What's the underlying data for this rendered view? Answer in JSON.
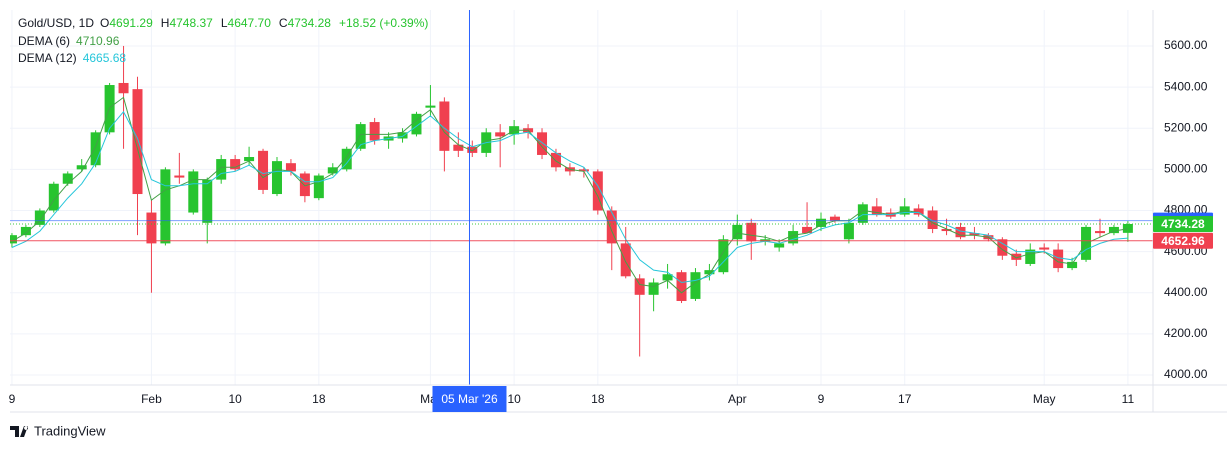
{
  "chart_data": {
    "type": "candlestick",
    "header": {
      "symbol": "Gold/USD, 1D",
      "fields": [
        {
          "key": "O",
          "value": "4691.29"
        },
        {
          "key": "H",
          "value": "4748.37"
        },
        {
          "key": "L",
          "value": "4647.70"
        },
        {
          "key": "C",
          "value": "4734.28"
        }
      ],
      "change": "+18.52 (+0.39%)"
    },
    "up_color": "#27c42f",
    "down_color": "#f0404f",
    "ohlc": {
      "open": [
        4640,
        4680,
        4730,
        4800,
        4930,
        5000,
        5020,
        5180,
        5420,
        5390,
        4790,
        4640,
        4970,
        4790,
        4740,
        4950,
        5050,
        5040,
        5090,
        4880,
        5030,
        4980,
        4860,
        4980,
        5000,
        5100,
        5230,
        5140,
        5150,
        5170,
        5300,
        5330,
        5120,
        5110,
        5080,
        5180,
        5170,
        5200,
        5180,
        5080,
        5010,
        5000,
        4990,
        4800,
        4640,
        4470,
        4390,
        4460,
        4500,
        4370,
        4490,
        4500,
        4660,
        4740,
        4650,
        4620,
        4640,
        4720,
        4720,
        4770,
        4660,
        4740,
        4820,
        4790,
        4780,
        4810,
        4800,
        4710,
        4720,
        4690,
        4680,
        4660,
        4590,
        4540,
        4620,
        4610,
        4520,
        4560,
        4700,
        4690,
        4691.29
      ],
      "high": [
        4690,
        4730,
        4810,
        4940,
        4990,
        5050,
        5190,
        5420,
        5600,
        5450,
        4850,
        5010,
        5080,
        5000,
        4960,
        5070,
        5070,
        5110,
        5100,
        5060,
        5050,
        4990,
        4980,
        5030,
        5110,
        5230,
        5250,
        5180,
        5200,
        5280,
        5410,
        5350,
        5180,
        5140,
        5200,
        5220,
        5240,
        5220,
        5200,
        5100,
        5030,
        5010,
        5000,
        4820,
        4720,
        4490,
        4470,
        4540,
        4510,
        4520,
        4540,
        4680,
        4780,
        4760,
        4680,
        4660,
        4730,
        4840,
        4790,
        4780,
        4760,
        4840,
        4860,
        4810,
        4860,
        4830,
        4820,
        4760,
        4740,
        4720,
        4690,
        4670,
        4610,
        4640,
        4640,
        4640,
        4570,
        4730,
        4760,
        4730,
        4748.37
      ],
      "low": [
        4620,
        4670,
        4720,
        4790,
        4920,
        4990,
        5010,
        5170,
        5100,
        4680,
        4400,
        4630,
        4930,
        4780,
        4640,
        4930,
        4990,
        5020,
        4880,
        4870,
        4970,
        4840,
        4850,
        4970,
        4990,
        5090,
        5120,
        5100,
        5130,
        5160,
        5260,
        4990,
        5060,
        5060,
        5060,
        5010,
        5120,
        5150,
        5050,
        4990,
        4970,
        4960,
        4780,
        4510,
        4470,
        4090,
        4310,
        4420,
        4350,
        4360,
        4460,
        4490,
        4630,
        4560,
        4630,
        4600,
        4630,
        4690,
        4700,
        4740,
        4640,
        4730,
        4770,
        4760,
        4770,
        4770,
        4690,
        4680,
        4660,
        4660,
        4650,
        4560,
        4530,
        4530,
        4590,
        4500,
        4510,
        4550,
        4670,
        4680,
        4647.7
      ],
      "close": [
        4680,
        4720,
        4800,
        4930,
        4980,
        5020,
        5180,
        5410,
        5370,
        4880,
        4640,
        5000,
        4960,
        4990,
        4950,
        5050,
        5000,
        5060,
        4900,
        5040,
        4990,
        4870,
        4970,
        5010,
        5100,
        5220,
        5140,
        5160,
        5180,
        5270,
        5310,
        5090,
        5090,
        5080,
        5180,
        5160,
        5210,
        5180,
        5070,
        5010,
        4990,
        4990,
        4800,
        4640,
        4480,
        4390,
        4450,
        4490,
        4360,
        4500,
        4510,
        4660,
        4730,
        4650,
        4660,
        4640,
        4700,
        4690,
        4760,
        4750,
        4740,
        4830,
        4780,
        4770,
        4820,
        4780,
        4710,
        4700,
        4670,
        4680,
        4660,
        4580,
        4560,
        4610,
        4610,
        4520,
        4550,
        4720,
        4690,
        4720,
        4734.28
      ]
    },
    "overlays": [
      {
        "name": "DEMA (6)",
        "color": "#43a047",
        "value_label": "4710.96",
        "values": [
          4650,
          4690,
          4750,
          4850,
          4930,
          4990,
          5110,
          5300,
          5350,
          5100,
          4850,
          4900,
          4920,
          4950,
          4950,
          5010,
          5010,
          5040,
          4960,
          5000,
          4990,
          4920,
          4940,
          4980,
          5060,
          5170,
          5170,
          5170,
          5180,
          5240,
          5290,
          5180,
          5120,
          5090,
          5140,
          5150,
          5190,
          5190,
          5110,
          5040,
          5000,
          4990,
          4870,
          4700,
          4550,
          4440,
          4430,
          4460,
          4400,
          4450,
          4490,
          4600,
          4690,
          4680,
          4670,
          4650,
          4680,
          4690,
          4730,
          4750,
          4750,
          4800,
          4790,
          4780,
          4800,
          4790,
          4740,
          4710,
          4680,
          4680,
          4670,
          4610,
          4570,
          4590,
          4600,
          4550,
          4540,
          4640,
          4670,
          4700,
          4710.96
        ]
      },
      {
        "name": "DEMA (12)",
        "color": "#26c6da",
        "value_label": "4665.68",
        "values": [
          4620,
          4650,
          4700,
          4780,
          4860,
          4930,
          5030,
          5200,
          5280,
          5150,
          4950,
          4920,
          4920,
          4930,
          4930,
          4980,
          4990,
          5020,
          4980,
          4990,
          4990,
          4940,
          4940,
          4960,
          5030,
          5120,
          5140,
          5150,
          5160,
          5210,
          5260,
          5200,
          5150,
          5110,
          5130,
          5140,
          5170,
          5180,
          5130,
          5080,
          5040,
          5010,
          4920,
          4790,
          4660,
          4560,
          4510,
          4500,
          4450,
          4460,
          4480,
          4550,
          4620,
          4640,
          4650,
          4640,
          4660,
          4680,
          4710,
          4730,
          4740,
          4780,
          4780,
          4780,
          4790,
          4790,
          4750,
          4730,
          4700,
          4690,
          4680,
          4640,
          4600,
          4600,
          4600,
          4570,
          4560,
          4610,
          4640,
          4660,
          4665.68
        ]
      }
    ],
    "price_lines": [
      {
        "value": 4750.78,
        "color": "#2962ff"
      },
      {
        "value": 4734.28,
        "color": "#27c42f"
      },
      {
        "value": 4652.96,
        "color": "#f0404f"
      }
    ],
    "xlim": [
      -0.14,
      81.8
    ],
    "ylim": [
      3951.5,
      5774.8
    ],
    "yticks": [
      {
        "value": 4000,
        "label": "4000.00"
      },
      {
        "value": 4200,
        "label": "4200.00"
      },
      {
        "value": 4400,
        "label": "4400.00"
      },
      {
        "value": 4600,
        "label": "4600.00"
      },
      {
        "value": 4800,
        "label": "4800.00"
      },
      {
        "value": 5000,
        "label": "5000.00"
      },
      {
        "value": 5200,
        "label": "5200.00"
      },
      {
        "value": 5400,
        "label": "5400.00"
      },
      {
        "value": 5600,
        "label": "5600.00"
      }
    ],
    "xticks": [
      {
        "value": 0,
        "label": "9"
      },
      {
        "value": 10,
        "label": "Feb"
      },
      {
        "value": 16,
        "label": "10"
      },
      {
        "value": 22,
        "label": "18"
      },
      {
        "value": 30,
        "label": "Mar"
      },
      {
        "value": 36,
        "label": "10"
      },
      {
        "value": 42,
        "label": "18"
      },
      {
        "value": 52,
        "label": "Apr"
      },
      {
        "value": 58,
        "label": "9"
      },
      {
        "value": 64,
        "label": "17"
      },
      {
        "value": 74,
        "label": "May"
      },
      {
        "value": 80,
        "label": "11"
      }
    ],
    "crosshair": {
      "value": 32.8,
      "label": "05 Mar '26"
    },
    "grid": true,
    "brand": "TradingView"
  }
}
